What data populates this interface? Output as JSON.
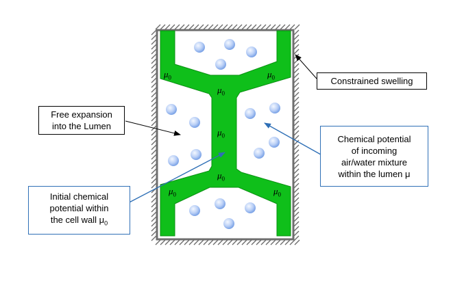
{
  "labels": {
    "constrained_swelling": "Constrained swelling",
    "free_expansion_line1": "Free expansion",
    "free_expansion_line2": "into the Lumen",
    "chem_potential_line1": "Chemical potential",
    "chem_potential_line2": "of incoming",
    "chem_potential_line3": "air/water mixture",
    "chem_potential_line4": "within the lumen μ",
    "initial_line1": "Initial chemical",
    "initial_line2": "potential within",
    "initial_line3": "the cell wall μ",
    "initial_line3_sub": "0"
  },
  "mu_labels": {
    "symbol": "μ",
    "subscript": "0"
  },
  "colors": {
    "cell_wall": "#0fbf1a",
    "cell_wall_outline": "#0a8f12",
    "frame": "#6e6e6e",
    "hatch": "#6e6e6e",
    "callout_border": "#2e6fb6",
    "blue_arrow": "#2e6fb6",
    "particle_light": "#e4eeff",
    "particle_dark": "#7aa2e6"
  }
}
